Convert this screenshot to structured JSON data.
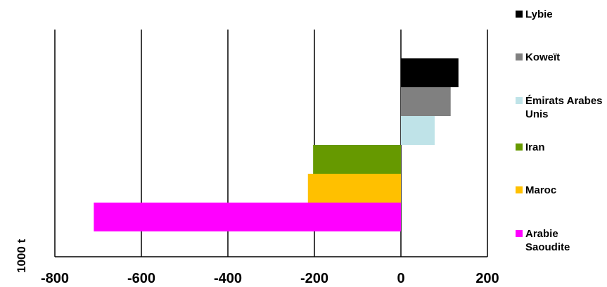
{
  "chart_data": {
    "type": "bar",
    "orientation": "horizontal",
    "stacked_layout": "overlapping-offset",
    "ylabel": "1000 t",
    "xlim": [
      -800,
      200
    ],
    "xticks": [
      -800,
      -600,
      -400,
      -200,
      0,
      200
    ],
    "xtick_labels": [
      "-800",
      "-600",
      "-400",
      "-200",
      "0",
      "200"
    ],
    "grid": "vertical-major",
    "legend_position": "right",
    "series": [
      {
        "name": "Lybie",
        "value": 133,
        "color": "#000000"
      },
      {
        "name": "Koweït",
        "value": 115,
        "color": "#808080"
      },
      {
        "name": "Émirats Arabes Unis",
        "value": 78,
        "color": "#bfe3e8"
      },
      {
        "name": "Iran",
        "value": -203,
        "color": "#669900"
      },
      {
        "name": "Maroc",
        "value": -215,
        "color": "#ffc000"
      },
      {
        "name": "Arabie Saoudite",
        "value": -710,
        "color": "#ff00ff"
      }
    ]
  }
}
